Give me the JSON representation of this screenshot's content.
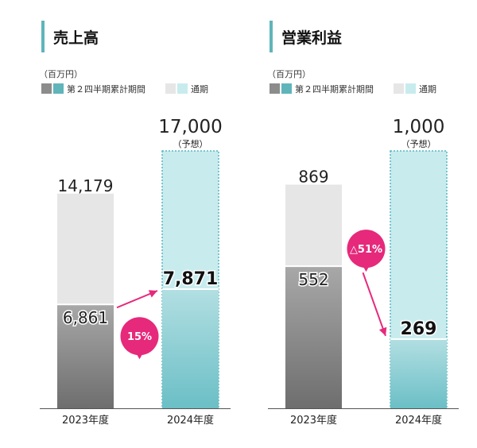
{
  "colors": {
    "accent_bar": "#5fb5ba",
    "prior_h1_top": "#a8a8a8",
    "prior_h1_bottom": "#6e6e6e",
    "prior_full": "#e6e6e6",
    "cur_h1_top": "#b2dfe2",
    "cur_h1_bottom": "#6bbfc6",
    "cur_full": "#c8ecee",
    "forecast_border": "#55b7c0",
    "badge": "#e6297b",
    "text": "#222222"
  },
  "legend": {
    "unit": "（百万円）",
    "h1_label": "第２四半期累計期間",
    "full_label": "通期"
  },
  "chart_data": [
    {
      "type": "bar",
      "title": "売上高",
      "categories": [
        "2023年度",
        "2024年度"
      ],
      "series": [
        {
          "name": "第２四半期累計期間",
          "values": [
            6861,
            7871
          ],
          "labels": [
            "6,861",
            "7,871"
          ]
        },
        {
          "name": "通期",
          "values": [
            14179,
            17000
          ],
          "labels": [
            "14,179",
            "17,000"
          ]
        }
      ],
      "forecast_note": "（予想）",
      "change_badge": "15%",
      "ylim": [
        0,
        17000
      ]
    },
    {
      "type": "bar",
      "title": "営業利益",
      "categories": [
        "2023年度",
        "2024年度"
      ],
      "series": [
        {
          "name": "第２四半期累計期間",
          "values": [
            552,
            269
          ],
          "labels": [
            "552",
            "269"
          ]
        },
        {
          "name": "通期",
          "values": [
            869,
            1000
          ],
          "labels": [
            "869",
            "1,000"
          ]
        }
      ],
      "forecast_note": "（予想）",
      "change_badge": "△51%",
      "ylim": [
        0,
        1000
      ]
    }
  ]
}
